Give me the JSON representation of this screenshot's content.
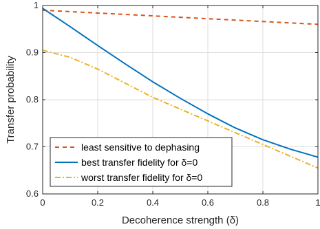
{
  "chart_data": {
    "type": "line",
    "xlabel": "Decoherence strength (δ)",
    "ylabel": "Transfer probability",
    "xlim": [
      0,
      1
    ],
    "ylim": [
      0.6,
      1
    ],
    "xticks": [
      0,
      0.2,
      0.4,
      0.6,
      0.8,
      1
    ],
    "xtick_labels": [
      "0",
      "0.2",
      "0.4",
      "0.6",
      "0.8",
      "1"
    ],
    "yticks": [
      0.6,
      0.7,
      0.8,
      0.9,
      1
    ],
    "ytick_labels": [
      "0.6",
      "0.7",
      "0.8",
      "0.9",
      "1"
    ],
    "grid": true,
    "legend_position": "bottom-left",
    "series": [
      {
        "name": "least sensitive to dephasing",
        "color": "#D95319",
        "style": "dashed",
        "x": [
          0,
          0.1,
          0.2,
          0.3,
          0.4,
          0.5,
          0.6,
          0.7,
          0.8,
          0.9,
          1.0
        ],
        "y": [
          0.99,
          0.987,
          0.984,
          0.981,
          0.978,
          0.975,
          0.972,
          0.969,
          0.966,
          0.963,
          0.96
        ]
      },
      {
        "name": "best transfer fidelity for δ=0",
        "color": "#0072BD",
        "style": "solid",
        "x": [
          0,
          0.1,
          0.2,
          0.3,
          0.4,
          0.5,
          0.6,
          0.7,
          0.8,
          0.9,
          1.0
        ],
        "y": [
          0.994,
          0.955,
          0.915,
          0.876,
          0.838,
          0.803,
          0.77,
          0.74,
          0.715,
          0.695,
          0.678
        ]
      },
      {
        "name": "worst transfer fidelity for δ=0",
        "color": "#EDB120",
        "style": "dashdot",
        "x": [
          0,
          0.1,
          0.2,
          0.3,
          0.4,
          0.5,
          0.6,
          0.7,
          0.8,
          0.9,
          1.0
        ],
        "y": [
          0.905,
          0.89,
          0.865,
          0.835,
          0.805,
          0.78,
          0.755,
          0.73,
          0.705,
          0.68,
          0.655
        ]
      }
    ]
  }
}
